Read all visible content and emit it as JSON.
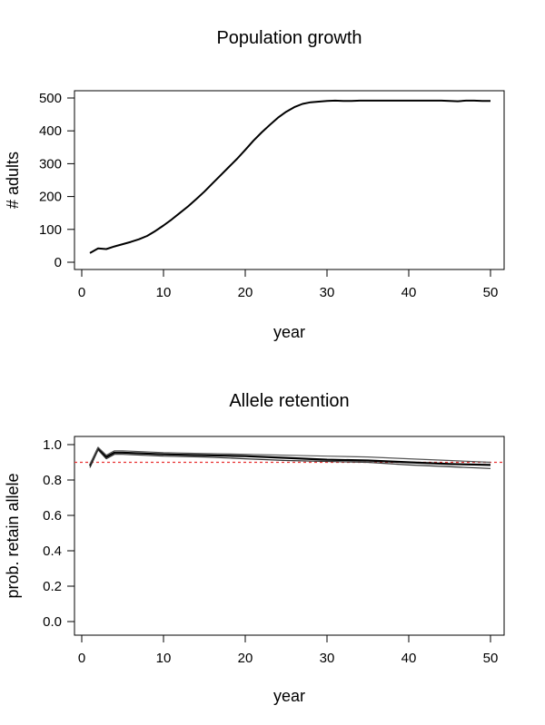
{
  "chart_data": [
    {
      "type": "line",
      "title": "Population growth",
      "xlabel": "year",
      "ylabel": "# adults",
      "xlim": [
        0,
        50
      ],
      "ylim": [
        0,
        500
      ],
      "xticks": [
        0,
        10,
        20,
        30,
        40,
        50
      ],
      "yticks": [
        0,
        100,
        200,
        300,
        400,
        500
      ],
      "grid": false,
      "series": [
        {
          "x": [
            1,
            2,
            3,
            4,
            5,
            6,
            7,
            8,
            9,
            10,
            11,
            12,
            13,
            14,
            15,
            16,
            17,
            18,
            19,
            20,
            21,
            22,
            23,
            24,
            25,
            26,
            27,
            28,
            29,
            30,
            31,
            32,
            33,
            34,
            35,
            36,
            37,
            38,
            39,
            40,
            41,
            42,
            43,
            44,
            45,
            46,
            47,
            48,
            49,
            50
          ],
          "values": [
            28,
            42,
            40,
            48,
            55,
            62,
            70,
            80,
            95,
            112,
            130,
            150,
            170,
            192,
            215,
            240,
            265,
            290,
            315,
            342,
            370,
            395,
            418,
            440,
            458,
            472,
            482,
            487,
            489,
            491,
            492,
            491,
            491,
            492,
            492,
            492,
            492,
            492,
            492,
            492,
            492,
            492,
            492,
            492,
            491,
            490,
            492,
            492,
            491,
            491
          ]
        }
      ]
    },
    {
      "type": "line",
      "title": "Allele retention",
      "xlabel": "year",
      "ylabel": "prob. retain allele",
      "xlim": [
        0,
        50
      ],
      "ylim": [
        0,
        1
      ],
      "xticks": [
        0,
        10,
        20,
        30,
        40,
        50
      ],
      "yticks": [
        "0.0",
        "0.2",
        "0.4",
        "0.6",
        "0.8",
        "1.0"
      ],
      "grid": false,
      "reference_line": {
        "y": 0.9,
        "color": "#e83030",
        "style": "dashed"
      },
      "series": [
        {
          "x": [
            1,
            2,
            3,
            4,
            5,
            10,
            15,
            20,
            25,
            30,
            35,
            40,
            45,
            50
          ],
          "values": [
            0.88,
            0.98,
            0.93,
            0.955,
            0.955,
            0.945,
            0.94,
            0.935,
            0.925,
            0.915,
            0.91,
            0.9,
            0.89,
            0.885
          ]
        },
        {
          "x": [
            1,
            2,
            3,
            4,
            5,
            10,
            15,
            20,
            25,
            30,
            35,
            40,
            45,
            50
          ],
          "values": [
            0.89,
            0.985,
            0.94,
            0.965,
            0.965,
            0.955,
            0.95,
            0.945,
            0.94,
            0.935,
            0.93,
            0.92,
            0.91,
            0.9
          ]
        },
        {
          "x": [
            1,
            2,
            3,
            4,
            5,
            10,
            15,
            20,
            25,
            30,
            35,
            40,
            45,
            50
          ],
          "values": [
            0.87,
            0.97,
            0.92,
            0.945,
            0.945,
            0.935,
            0.93,
            0.92,
            0.91,
            0.905,
            0.9,
            0.885,
            0.875,
            0.865
          ]
        }
      ]
    }
  ]
}
